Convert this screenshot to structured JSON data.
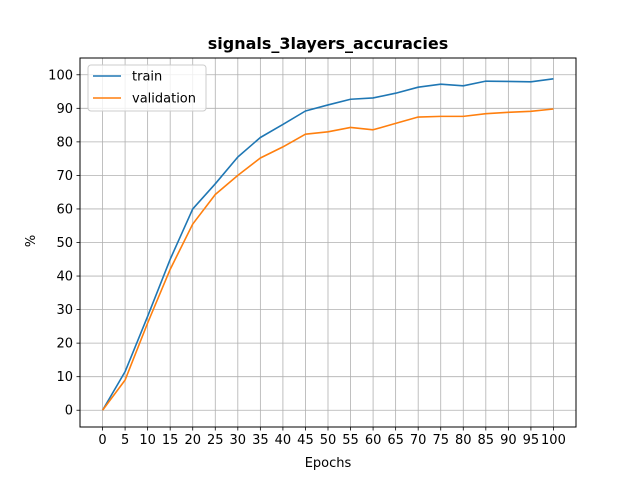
{
  "chart_data": {
    "type": "line",
    "title": "signals_3layers_accuracies",
    "xlabel": "Epochs",
    "ylabel": "%",
    "x": [
      0,
      5,
      10,
      15,
      20,
      25,
      30,
      35,
      40,
      45,
      50,
      55,
      60,
      65,
      70,
      75,
      80,
      85,
      90,
      95,
      100
    ],
    "xticks": [
      "0",
      "5",
      "10",
      "15",
      "20",
      "25",
      "30",
      "35",
      "40",
      "45",
      "50",
      "55",
      "60",
      "65",
      "70",
      "75",
      "80",
      "85",
      "90",
      "95",
      "100"
    ],
    "yticks": [
      "0",
      "10",
      "20",
      "30",
      "40",
      "50",
      "60",
      "70",
      "80",
      "90",
      "100"
    ],
    "xlim": [
      -5,
      105
    ],
    "ylim": [
      -5,
      105
    ],
    "grid": true,
    "legend_position": "top-left",
    "series": [
      {
        "name": "train",
        "color": "#1f77b4",
        "values": [
          0,
          11.5,
          28,
          45,
          60,
          67.5,
          75.5,
          81.3,
          85.2,
          89.2,
          91,
          92.7,
          93.1,
          94.5,
          96.3,
          97.2,
          96.7,
          98.1,
          98,
          97.9,
          98.8
        ]
      },
      {
        "name": "validation",
        "color": "#ff7f0e",
        "values": [
          0,
          9,
          26,
          42,
          55.5,
          64.3,
          70,
          75.2,
          78.5,
          82.3,
          83,
          84.3,
          83.6,
          85.5,
          87.4,
          87.6,
          87.6,
          88.4,
          88.8,
          89.1,
          89.8
        ]
      }
    ]
  }
}
